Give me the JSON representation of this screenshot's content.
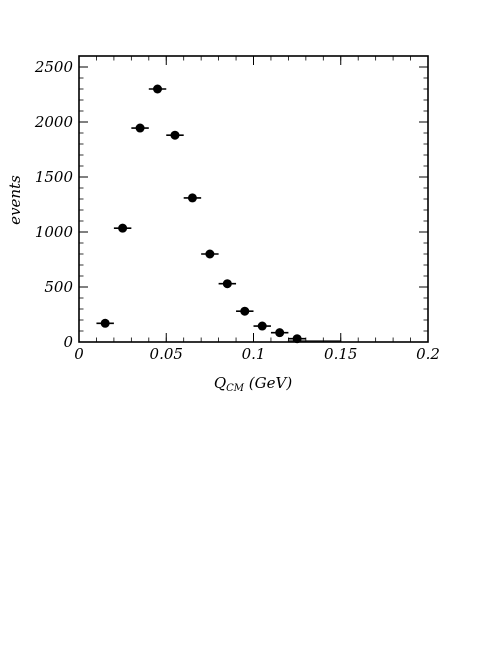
{
  "chart_data": {
    "type": "scatter",
    "title": "",
    "xlabel": "Q",
    "xlabel_subscript": "CM",
    "xlabel_unit": " (GeV)",
    "ylabel": "events",
    "xlim": [
      0,
      0.2
    ],
    "ylim": [
      0,
      2600
    ],
    "xticks": [
      0,
      0.05,
      0.1,
      0.15,
      0.2
    ],
    "xtick_labels": [
      "0",
      "0.05",
      "0.1",
      "0.15",
      "0.2"
    ],
    "yticks": [
      0,
      500,
      1000,
      1500,
      2000,
      2500
    ],
    "ytick_labels": [
      "0",
      "500",
      "1000",
      "1500",
      "2000",
      "2500"
    ],
    "grid": false,
    "bin_half_width": 0.005,
    "points": [
      {
        "x": 0.015,
        "y": 170
      },
      {
        "x": 0.025,
        "y": 1035
      },
      {
        "x": 0.035,
        "y": 1945
      },
      {
        "x": 0.045,
        "y": 2300
      },
      {
        "x": 0.055,
        "y": 1880
      },
      {
        "x": 0.065,
        "y": 1310
      },
      {
        "x": 0.075,
        "y": 800
      },
      {
        "x": 0.085,
        "y": 530
      },
      {
        "x": 0.095,
        "y": 280
      },
      {
        "x": 0.105,
        "y": 145
      },
      {
        "x": 0.115,
        "y": 85
      },
      {
        "x": 0.125,
        "y": 30
      }
    ],
    "open_boxes": [
      {
        "x0": 0.12,
        "x1": 0.15,
        "y": 10
      }
    ],
    "color": "#000000"
  }
}
